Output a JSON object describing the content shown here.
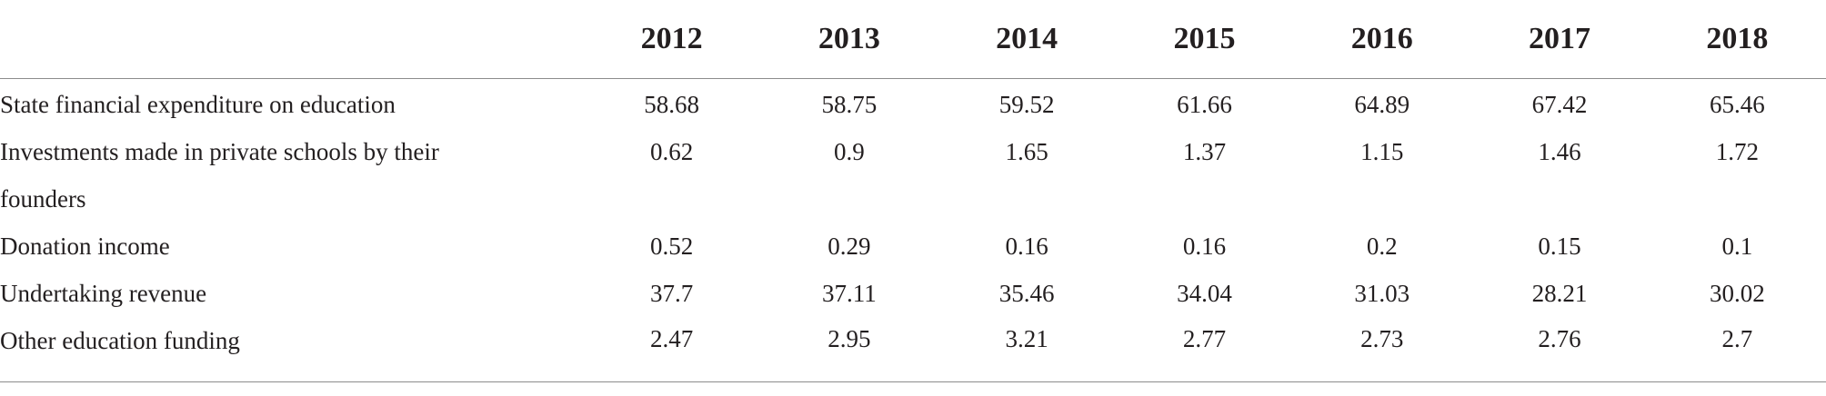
{
  "table": {
    "header_label": "",
    "years": [
      "2012",
      "2013",
      "2014",
      "2015",
      "2016",
      "2017",
      "2018"
    ],
    "rows": [
      {
        "label": "State financial expenditure on education",
        "values": [
          "58.68",
          "58.75",
          "59.52",
          "61.66",
          "64.89",
          "67.42",
          "65.46"
        ]
      },
      {
        "label": "Investments made in private schools by their founders",
        "values": [
          "0.62",
          "0.9",
          "1.65",
          "1.37",
          "1.15",
          "1.46",
          "1.72"
        ]
      },
      {
        "label": "Donation income",
        "values": [
          "0.52",
          "0.29",
          "0.16",
          "0.16",
          "0.2",
          "0.15",
          "0.1"
        ]
      },
      {
        "label": "Undertaking revenue",
        "values": [
          "37.7",
          "37.11",
          "35.46",
          "34.04",
          "31.03",
          "28.21",
          "30.02"
        ]
      },
      {
        "label": "Other education funding",
        "values": [
          "2.47",
          "2.95",
          "3.21",
          "2.77",
          "2.73",
          "2.76",
          "2.7"
        ]
      }
    ]
  }
}
